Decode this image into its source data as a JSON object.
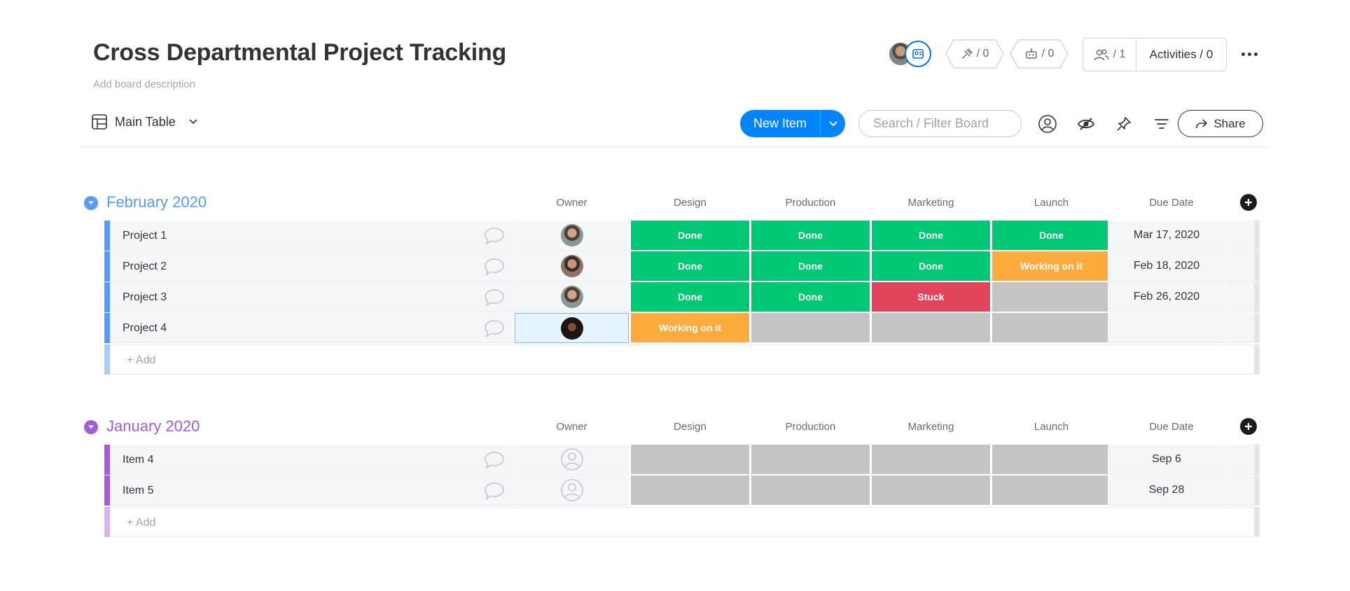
{
  "board": {
    "title": "Cross Departmental Project Tracking",
    "description": "Add board description"
  },
  "header": {
    "integrations_count": "/ 0",
    "automations_count": "/ 0",
    "members_count": "/ 1",
    "activities_label": "Activities / 0"
  },
  "toolbar": {
    "view_label": "Main Table",
    "new_item_label": "New Item",
    "search_placeholder": "Search / Filter Board",
    "share_label": "Share"
  },
  "columns": [
    "Owner",
    "Design",
    "Production",
    "Marketing",
    "Launch",
    "Due Date"
  ],
  "colors": {
    "done": "#00c875",
    "working": "#fdab3d",
    "stuck": "#e2445c",
    "empty": "#c4c4c4",
    "group_feb": "#579bfc",
    "group_jan": "#a25ddc",
    "primary": "#0085ff"
  },
  "groups": [
    {
      "title": "February 2020",
      "add_label": "+ Add",
      "rows": [
        {
          "name": "Project 1",
          "statuses": [
            "Done",
            "Done",
            "Done",
            "Done"
          ],
          "due": "Mar 17, 2020"
        },
        {
          "name": "Project 2",
          "statuses": [
            "Done",
            "Done",
            "Done",
            "Working on it"
          ],
          "due": "Feb 18, 2020"
        },
        {
          "name": "Project 3",
          "statuses": [
            "Done",
            "Done",
            "Stuck",
            ""
          ],
          "due": "Feb 26, 2020"
        },
        {
          "name": "Project 4",
          "statuses": [
            "Working on it",
            "",
            "",
            ""
          ],
          "due": ""
        }
      ]
    },
    {
      "title": "January 2020",
      "add_label": "+ Add",
      "rows": [
        {
          "name": "Item 4",
          "statuses": [
            "",
            "",
            "",
            ""
          ],
          "due": "Sep 6"
        },
        {
          "name": "Item 5",
          "statuses": [
            "",
            "",
            "",
            ""
          ],
          "due": "Sep 28"
        }
      ]
    }
  ]
}
